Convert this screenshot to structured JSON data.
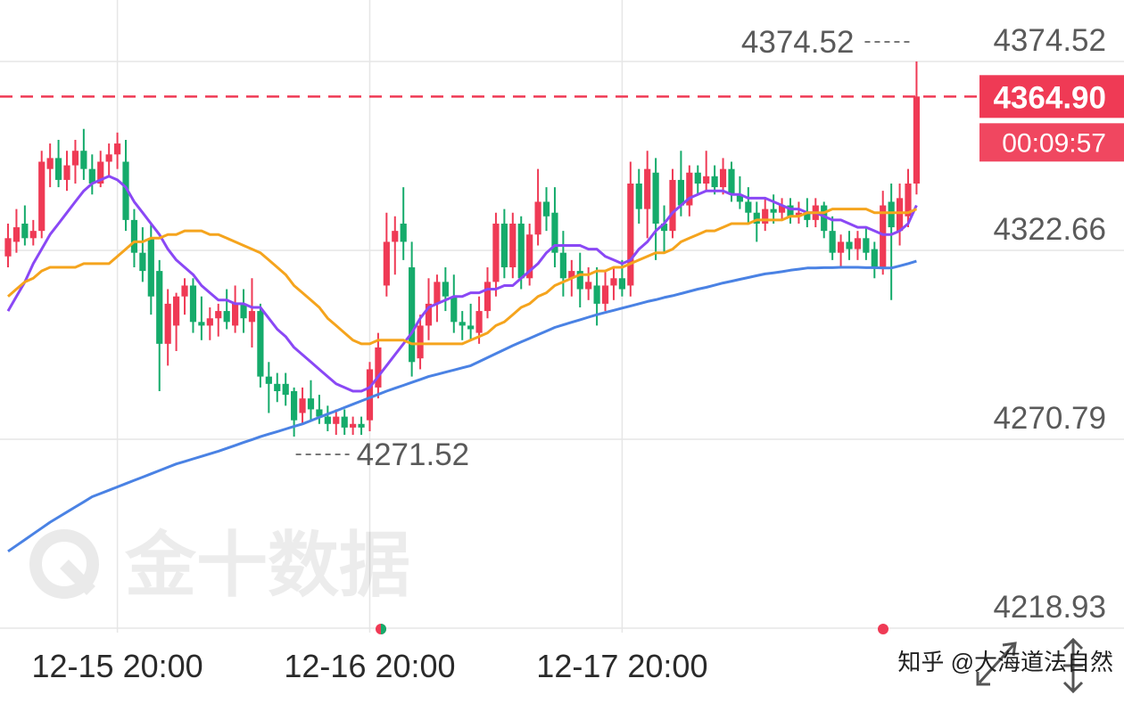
{
  "chart_data": {
    "type": "candlestick",
    "watermark": "金十数据",
    "credit": "知乎 @大海道法自然",
    "categories": [
      null,
      null,
      null,
      null,
      null,
      null,
      null,
      null,
      null,
      null,
      null,
      null,
      null,
      "12-15 20:00",
      null,
      null,
      null,
      null,
      null,
      null,
      null,
      null,
      null,
      null,
      null,
      null,
      null,
      null,
      null,
      null,
      null,
      null,
      null,
      null,
      null,
      null,
      null,
      null,
      null,
      null,
      null,
      null,
      null,
      "12-16 20:00",
      null,
      null,
      null,
      null,
      null,
      null,
      null,
      null,
      null,
      null,
      null,
      null,
      null,
      null,
      null,
      null,
      null,
      null,
      null,
      null,
      null,
      null,
      null,
      null,
      null,
      null,
      null,
      null,
      null,
      "12-17 20:00",
      null,
      null,
      null,
      null,
      null,
      null,
      null,
      null,
      null,
      null,
      null,
      null,
      null,
      null,
      null,
      null,
      null,
      null,
      null,
      null,
      null,
      null,
      null,
      null,
      null,
      null,
      null,
      null,
      null,
      null,
      null,
      null,
      null,
      null,
      null
    ],
    "ohlc": [
      [
        4321,
        4330,
        4318,
        4326
      ],
      [
        4325,
        4334,
        4322,
        4329
      ],
      [
        4330,
        4335,
        4324,
        4326
      ],
      [
        4326,
        4331,
        4324,
        4328
      ],
      [
        4328,
        4350,
        4326,
        4347
      ],
      [
        4345,
        4352,
        4340,
        4348
      ],
      [
        4348,
        4353,
        4340,
        4342
      ],
      [
        4342,
        4350,
        4339,
        4346
      ],
      [
        4346,
        4353,
        4341,
        4350
      ],
      [
        4350,
        4356,
        4342,
        4345
      ],
      [
        4345,
        4349,
        4338,
        4341
      ],
      [
        4341,
        4350,
        4340,
        4347
      ],
      [
        4347,
        4352,
        4343,
        4349
      ],
      [
        4349,
        4355,
        4345,
        4352
      ],
      [
        4347,
        4353,
        4328,
        4331
      ],
      [
        4331,
        4334,
        4318,
        4322
      ],
      [
        4322,
        4329,
        4314,
        4317
      ],
      [
        4326,
        4330,
        4305,
        4310
      ],
      [
        4317,
        4320,
        4284,
        4297
      ],
      [
        4297,
        4312,
        4291,
        4308
      ],
      [
        4302,
        4311,
        4295,
        4310
      ],
      [
        4310,
        4315,
        4305,
        4313
      ],
      [
        4313,
        4315,
        4300,
        4303
      ],
      [
        4303,
        4310,
        4298,
        4302
      ],
      [
        4302,
        4307,
        4298,
        4304
      ],
      [
        4304,
        4308,
        4299,
        4306
      ],
      [
        4306,
        4312,
        4301,
        4303
      ],
      [
        4302,
        4313,
        4300,
        4308
      ],
      [
        4308,
        4312,
        4300,
        4304
      ],
      [
        4303,
        4315,
        4296,
        4306
      ],
      [
        4306,
        4308,
        4285,
        4288
      ],
      [
        4288,
        4292,
        4278,
        4286
      ],
      [
        4286,
        4289,
        4281,
        4284
      ],
      [
        4286,
        4289,
        4280,
        4283
      ],
      [
        4284,
        4285,
        4271.52,
        4276
      ],
      [
        4278,
        4285,
        4275,
        4282
      ],
      [
        4282,
        4287,
        4276,
        4279
      ],
      [
        4279,
        4283,
        4275,
        4277
      ],
      [
        4277,
        4280,
        4273,
        4275
      ],
      [
        4275,
        4279,
        4272,
        4277
      ],
      [
        4277,
        4279,
        4272,
        4274
      ],
      [
        4274,
        4277,
        4272,
        4275
      ],
      [
        4275,
        4277,
        4272,
        4274
      ],
      [
        4276,
        4292,
        4273,
        4290
      ],
      [
        4285,
        4300,
        4282,
        4296
      ],
      [
        4313,
        4333,
        4310,
        4325
      ],
      [
        4325,
        4332,
        4316,
        4328
      ],
      [
        4330,
        4340,
        4320,
        4325
      ],
      [
        4318,
        4325,
        4288,
        4292
      ],
      [
        4293,
        4305,
        4290,
        4302
      ],
      [
        4302,
        4315,
        4298,
        4308
      ],
      [
        4308,
        4316,
        4303,
        4314
      ],
      [
        4314,
        4318,
        4306,
        4310
      ],
      [
        4310,
        4316,
        4300,
        4303
      ],
      [
        4303,
        4306,
        4298,
        4302
      ],
      [
        4302,
        4308,
        4298,
        4301
      ],
      [
        4300,
        4310,
        4297,
        4306
      ],
      [
        4306,
        4318,
        4304,
        4314
      ],
      [
        4314,
        4333,
        4310,
        4330
      ],
      [
        4330,
        4334,
        4315,
        4318
      ],
      [
        4318,
        4333,
        4315,
        4330
      ],
      [
        4330,
        4332,
        4312,
        4315
      ],
      [
        4315,
        4330,
        4313,
        4327
      ],
      [
        4327,
        4345,
        4324,
        4336
      ],
      [
        4336,
        4340,
        4328,
        4332
      ],
      [
        4333,
        4340,
        4318,
        4322
      ],
      [
        4322,
        4328,
        4310,
        4315
      ],
      [
        4315,
        4320,
        4310,
        4317
      ],
      [
        4317,
        4322,
        4307,
        4312
      ],
      [
        4312,
        4318,
        4309,
        4314
      ],
      [
        4313,
        4318,
        4302,
        4308
      ],
      [
        4308,
        4317,
        4306,
        4313
      ],
      [
        4313,
        4318,
        4309,
        4315
      ],
      [
        4315,
        4320,
        4310,
        4312
      ],
      [
        4313,
        4347,
        4310,
        4341
      ],
      [
        4341,
        4345,
        4330,
        4334
      ],
      [
        4334,
        4350,
        4326,
        4345
      ],
      [
        4344,
        4348,
        4320,
        4330
      ],
      [
        4330,
        4335,
        4322,
        4328
      ],
      [
        4328,
        4345,
        4326,
        4342
      ],
      [
        4342,
        4350,
        4332,
        4335
      ],
      [
        4335,
        4346,
        4332,
        4344
      ],
      [
        4344,
        4346,
        4338,
        4341
      ],
      [
        4341,
        4350,
        4339,
        4343
      ],
      [
        4343,
        4346,
        4338,
        4340
      ],
      [
        4340,
        4348,
        4338,
        4345
      ],
      [
        4345,
        4347,
        4336,
        4338
      ],
      [
        4338,
        4343,
        4334,
        4336
      ],
      [
        4336,
        4340,
        4330,
        4333
      ],
      [
        4333,
        4336,
        4325,
        4330
      ],
      [
        4330,
        4337,
        4328,
        4334
      ],
      [
        4334,
        4338,
        4330,
        4333
      ],
      [
        4333,
        4337,
        4331,
        4335
      ],
      [
        4335,
        4337,
        4330,
        4332
      ],
      [
        4332,
        4336,
        4330,
        4333
      ],
      [
        4333,
        4337,
        4329,
        4331
      ],
      [
        4331,
        4337,
        4329,
        4335
      ],
      [
        4335,
        4336,
        4326,
        4328
      ],
      [
        4328,
        4332,
        4320,
        4322
      ],
      [
        4322,
        4327,
        4318,
        4325
      ],
      [
        4325,
        4328,
        4320,
        4323
      ],
      [
        4323,
        4328,
        4320,
        4326
      ],
      [
        4326,
        4329,
        4320,
        4322
      ],
      [
        4323,
        4325,
        4315,
        4318
      ],
      [
        4318,
        4339,
        4316,
        4335
      ],
      [
        4336,
        4341,
        4309,
        4329
      ],
      [
        4328,
        4341,
        4324,
        4337
      ],
      [
        4332,
        4345,
        4329,
        4341
      ],
      [
        4341,
        4374.52,
        4338,
        4364.9
      ]
    ],
    "up_color": "#ef3a55",
    "down_color": "#15ab6b",
    "lines": [
      {
        "color": "#8a48f5",
        "values": [
          4306,
          4310,
          4314,
          4319,
          4323,
          4327,
          4330,
          4333,
          4336,
          4339,
          4341,
          4342,
          4343,
          4342,
          4340,
          4336,
          4333,
          4330,
          4327,
          4323,
          4320,
          4318,
          4316,
          4313,
          4311,
          4309,
          4309,
          4308,
          4308,
          4307,
          4307,
          4304,
          4301,
          4299,
          4296,
          4294,
          4292,
          4290,
          4288,
          4286,
          4285,
          4284,
          4284,
          4285,
          4288,
          4291,
          4294,
          4297,
          4300,
          4304,
          4307,
          4308,
          4309,
          4310,
          4310,
          4311,
          4311,
          4312,
          4312,
          4313,
          4313,
          4315,
          4317,
          4319,
          4322,
          4324,
          4324,
          4324,
          4324,
          4323,
          4323,
          4321,
          4320,
          4319,
          4320,
          4323,
          4325,
          4328,
          4330,
          4333,
          4335,
          4337,
          4338,
          4339,
          4339,
          4339,
          4338,
          4338,
          4337,
          4337,
          4337,
          4336,
          4335,
          4334,
          4334,
          4333,
          4333,
          4332,
          4331,
          4331,
          4330,
          4329,
          4329,
          4328,
          4327,
          4327,
          4328,
          4330,
          4335
        ]
      },
      {
        "color": "#f5a41d",
        "values": [
          4310,
          4312,
          4314,
          4315,
          4317,
          4318,
          4318,
          4318,
          4318,
          4319,
          4319,
          4319,
          4319,
          4321,
          4323,
          4325,
          4325,
          4326,
          4326,
          4327,
          4327,
          4328,
          4328,
          4328,
          4327,
          4327,
          4326,
          4325,
          4324,
          4323,
          4322,
          4320,
          4318,
          4316,
          4313,
          4311,
          4309,
          4307,
          4304,
          4302,
          4300,
          4298,
          4297,
          4297,
          4298,
          4298,
          4298,
          4298,
          4297,
          4297,
          4297,
          4297,
          4297,
          4297,
          4297,
          4298,
          4299,
          4300,
          4302,
          4303,
          4305,
          4307,
          4308,
          4310,
          4311,
          4313,
          4314,
          4315,
          4316,
          4316,
          4317,
          4317,
          4318,
          4318,
          4319,
          4320,
          4321,
          4322,
          4322,
          4323,
          4325,
          4326,
          4327,
          4328,
          4328,
          4329,
          4330,
          4330,
          4330,
          4331,
          4331,
          4331,
          4331,
          4332,
          4332,
          4333,
          4333,
          4333,
          4334,
          4334,
          4334,
          4334,
          4334,
          4333,
          4333,
          4333,
          4333,
          4333,
          4334
        ]
      },
      {
        "color": "#4a82e4",
        "values": [
          4240.0,
          4241.6,
          4243.2,
          4244.8,
          4246.4,
          4248.0,
          4249.4,
          4250.8,
          4252.2,
          4253.6,
          4255.0,
          4255.9,
          4256.8,
          4257.7,
          4258.6,
          4259.5,
          4260.4,
          4261.3,
          4262.2,
          4263.1,
          4264.0,
          4264.7,
          4265.4,
          4266.1,
          4266.8,
          4267.5,
          4268.3,
          4269.1,
          4269.9,
          4270.7,
          4271.5,
          4272.2,
          4272.9,
          4273.6,
          4274.3,
          4275.0,
          4275.9,
          4276.8,
          4277.7,
          4278.6,
          4279.5,
          4280.4,
          4281.3,
          4282.2,
          4283.1,
          4284.0,
          4284.8,
          4285.6,
          4286.4,
          4287.2,
          4288.0,
          4288.6,
          4289.2,
          4289.8,
          4290.4,
          4291.0,
          4292.1,
          4293.2,
          4294.3,
          4295.4,
          4296.5,
          4297.5,
          4298.5,
          4299.5,
          4300.5,
          4301.5,
          4302.2,
          4302.9,
          4303.6,
          4304.3,
          4305.0,
          4305.6,
          4306.2,
          4306.8,
          4307.4,
          4308.0,
          4308.6,
          4309.1,
          4309.7,
          4310.2,
          4310.8,
          4311.4,
          4312.0,
          4312.5,
          4313.1,
          4313.7,
          4314.2,
          4314.7,
          4315.2,
          4315.7,
          4316.2,
          4316.5,
          4316.8,
          4317.2,
          4317.5,
          4317.8,
          4317.8,
          4317.9,
          4317.9,
          4318.0,
          4318.0,
          4318.0,
          4317.9,
          4317.9,
          4317.8,
          4317.8,
          4318.4,
          4319.0,
          4319.7
        ]
      }
    ],
    "current_price": {
      "value": 4364.9,
      "label": "4364.90"
    },
    "countdown": "00:09:57",
    "ylim": [
      4217.7,
      4391.4
    ],
    "yticks": [
      4218.93,
      4270.79,
      4322.66,
      4374.52
    ],
    "grid": true
  }
}
